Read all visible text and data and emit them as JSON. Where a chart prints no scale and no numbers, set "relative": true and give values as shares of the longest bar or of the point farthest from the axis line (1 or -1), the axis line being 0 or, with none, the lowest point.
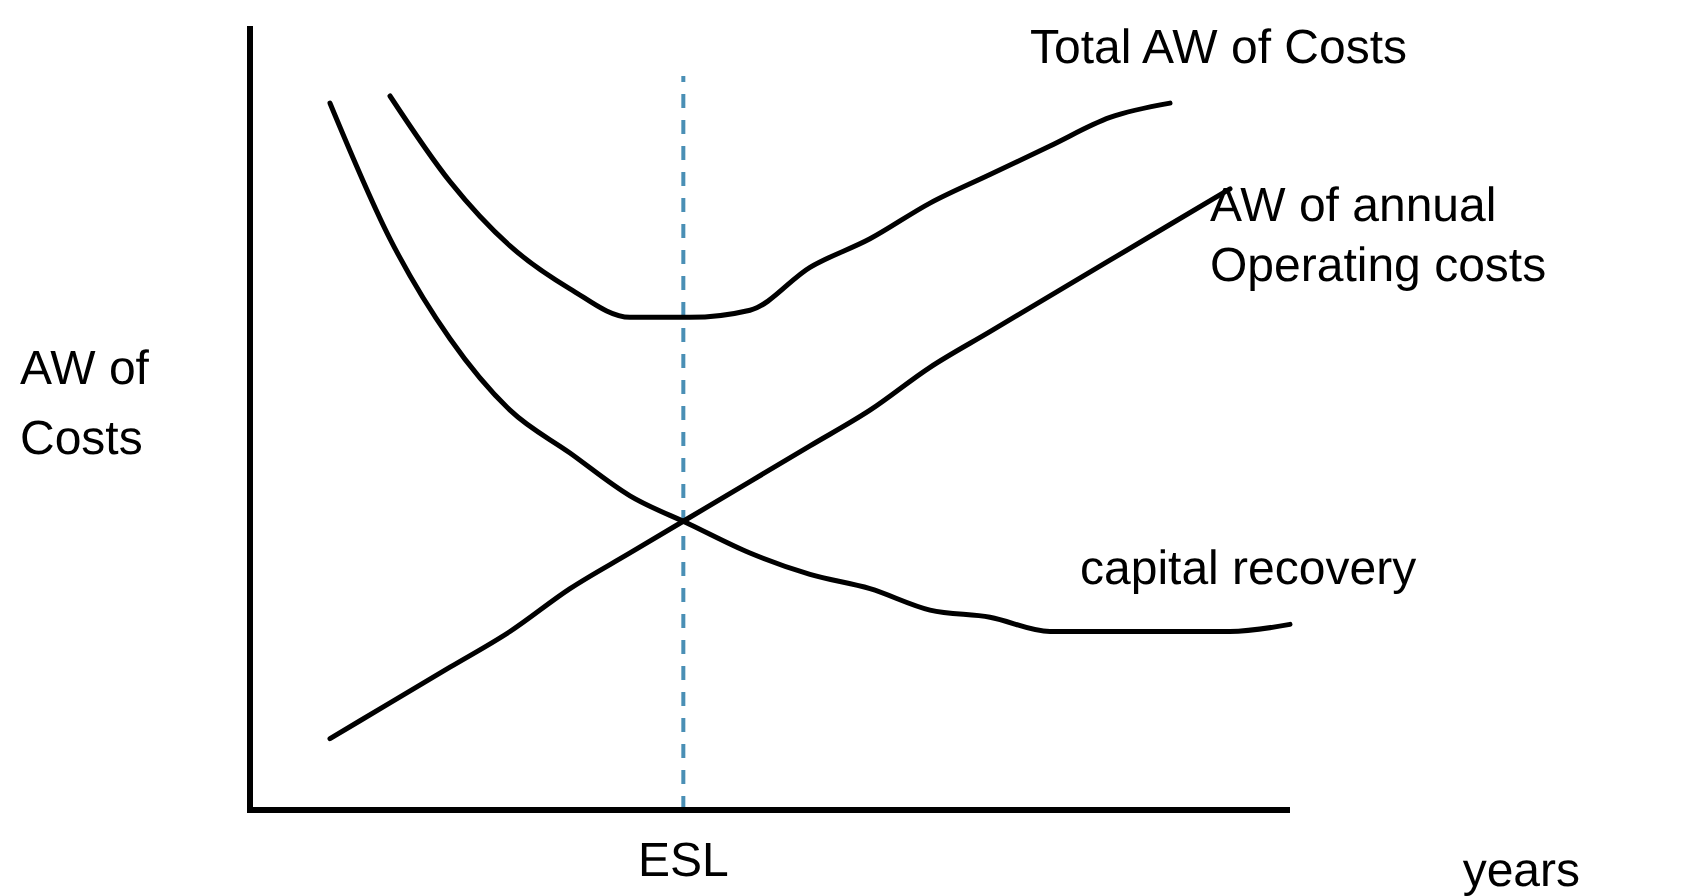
{
  "chart_data": {
    "type": "line",
    "relative": true,
    "ylabel": "AW of\nCosts",
    "xlabel": "years",
    "categories": [
      null,
      null,
      null,
      null,
      null,
      null,
      null,
      null,
      null,
      null,
      null,
      null,
      null,
      null,
      null,
      null,
      null
    ],
    "annotations": [
      "ESL"
    ],
    "series": [
      {
        "name": "Total AW of Costs",
        "color": "#000000",
        "values": [
          null,
          1,
          0.88,
          0.79,
          0.73,
          0.69,
          0.69,
          0.7,
          0.76,
          0.8,
          0.85,
          0.89,
          0.93,
          0.97,
          0.99,
          null,
          null
        ]
      },
      {
        "name": "AW of annual\nOperating costs",
        "color": "#000000",
        "values": [
          0.1,
          0.15,
          0.2,
          0.25,
          0.31,
          0.36,
          0.41,
          0.46,
          0.51,
          0.56,
          0.62,
          0.67,
          0.72,
          0.77,
          0.82,
          0.87,
          null
        ]
      },
      {
        "name": "capital recovery",
        "color": "#000000",
        "values": [
          0.99,
          0.8,
          0.66,
          0.56,
          0.5,
          0.44,
          0.4,
          0.36,
          0.33,
          0.31,
          0.28,
          0.27,
          0.25,
          0.25,
          0.25,
          0.25,
          0.26
        ]
      }
    ],
    "marker": "none",
    "line_style": "solid"
  }
}
